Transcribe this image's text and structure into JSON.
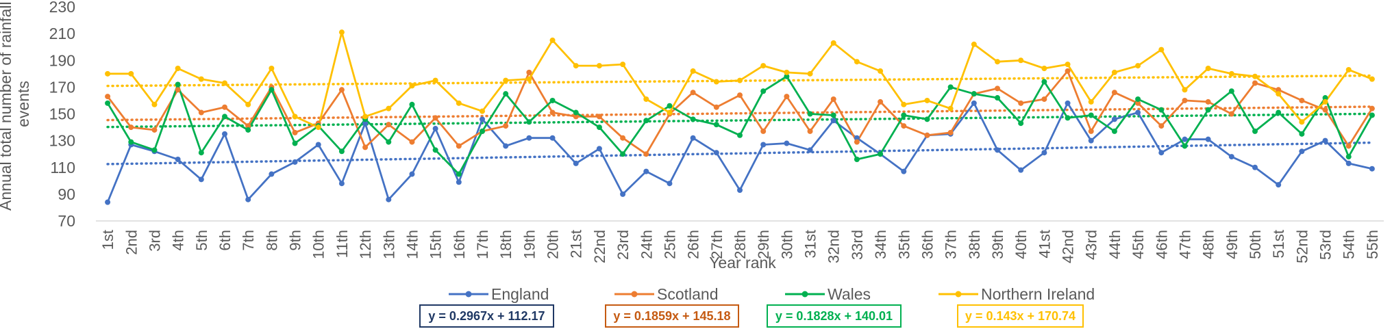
{
  "chart_data": {
    "type": "line",
    "title": "",
    "xlabel": "Year rank",
    "ylabel": "Annual total number of rainfall events",
    "ylim": [
      70,
      230
    ],
    "yticks": [
      70,
      90,
      110,
      130,
      150,
      170,
      190,
      210,
      230
    ],
    "grid": false,
    "legend_position": "bottom",
    "categories": [
      "1st",
      "2nd",
      "3rd",
      "4th",
      "5th",
      "6th",
      "7th",
      "8th",
      "9th",
      "10th",
      "11th",
      "12th",
      "13th",
      "14th",
      "15th",
      "16th",
      "17th",
      "18th",
      "19th",
      "20th",
      "21st",
      "22nd",
      "23rd",
      "24th",
      "25th",
      "26th",
      "27th",
      "28th",
      "29th",
      "30th",
      "31st",
      "32nd",
      "33rd",
      "34th",
      "35th",
      "36th",
      "37th",
      "38th",
      "39th",
      "40th",
      "41st",
      "42nd",
      "43rd",
      "44th",
      "45th",
      "46th",
      "47th",
      "48th",
      "49th",
      "50th",
      "51st",
      "52nd",
      "53rd",
      "54th",
      "55th"
    ],
    "series": [
      {
        "name": "England",
        "color": "#4472C4",
        "values": [
          84,
          127,
          122,
          116,
          101,
          135,
          86,
          105,
          114,
          127,
          98,
          143,
          86,
          105,
          139,
          99,
          146,
          126,
          132,
          132,
          113,
          124,
          90,
          107,
          98,
          132,
          121,
          93,
          127,
          128,
          123,
          145,
          132,
          120,
          107,
          134,
          135,
          158,
          123,
          108,
          121,
          158,
          130,
          146,
          151,
          121,
          131,
          131,
          118,
          110,
          97,
          122,
          130,
          113,
          109
        ],
        "trendline": {
          "slope": 0.2967,
          "intercept": 112.17,
          "label": "y = 0.2967x + 112.17",
          "label_color": "#1F3864"
        }
      },
      {
        "name": "Scotland",
        "color": "#ED7D31",
        "values": [
          163,
          140,
          138,
          168,
          151,
          155,
          141,
          170,
          136,
          143,
          168,
          125,
          142,
          129,
          147,
          126,
          137,
          141,
          181,
          151,
          148,
          148,
          132,
          120,
          150,
          166,
          155,
          164,
          137,
          163,
          137,
          161,
          129,
          159,
          141,
          134,
          136,
          165,
          169,
          158,
          161,
          182,
          137,
          166,
          158,
          141,
          160,
          159,
          150,
          173,
          168,
          160,
          153,
          126,
          154
        ],
        "trendline": {
          "slope": 0.1859,
          "intercept": 145.18,
          "label": "y = 0.1859x + 145.18",
          "label_color": "#C55A11"
        }
      },
      {
        "name": "Wales",
        "color": "#00B050",
        "values": [
          158,
          129,
          123,
          172,
          121,
          148,
          138,
          168,
          128,
          141,
          122,
          146,
          129,
          157,
          123,
          105,
          137,
          165,
          144,
          160,
          151,
          140,
          120,
          145,
          156,
          146,
          142,
          134,
          167,
          178,
          150,
          149,
          116,
          120,
          149,
          146,
          170,
          165,
          162,
          143,
          174,
          147,
          149,
          137,
          161,
          153,
          126,
          153,
          167,
          137,
          151,
          135,
          162,
          118,
          149
        ],
        "trendline": {
          "slope": 0.1828,
          "intercept": 140.01,
          "label": "y = 0.1828x + 140.01",
          "label_color": "#00B050"
        }
      },
      {
        "name": "Northern Ireland",
        "color": "#FFC000",
        "values": [
          180,
          180,
          157,
          184,
          176,
          173,
          157,
          184,
          148,
          140,
          211,
          148,
          154,
          171,
          175,
          158,
          152,
          175,
          176,
          205,
          186,
          186,
          187,
          161,
          151,
          182,
          174,
          175,
          186,
          181,
          180,
          203,
          189,
          182,
          157,
          160,
          154,
          202,
          189,
          190,
          184,
          187,
          159,
          181,
          186,
          198,
          168,
          184,
          180,
          178,
          165,
          144,
          159,
          183,
          176
        ],
        "trendline": {
          "slope": 0.143,
          "intercept": 170.74,
          "label": "y = 0.143x + 170.74",
          "label_color": "#FFC000"
        }
      }
    ]
  }
}
